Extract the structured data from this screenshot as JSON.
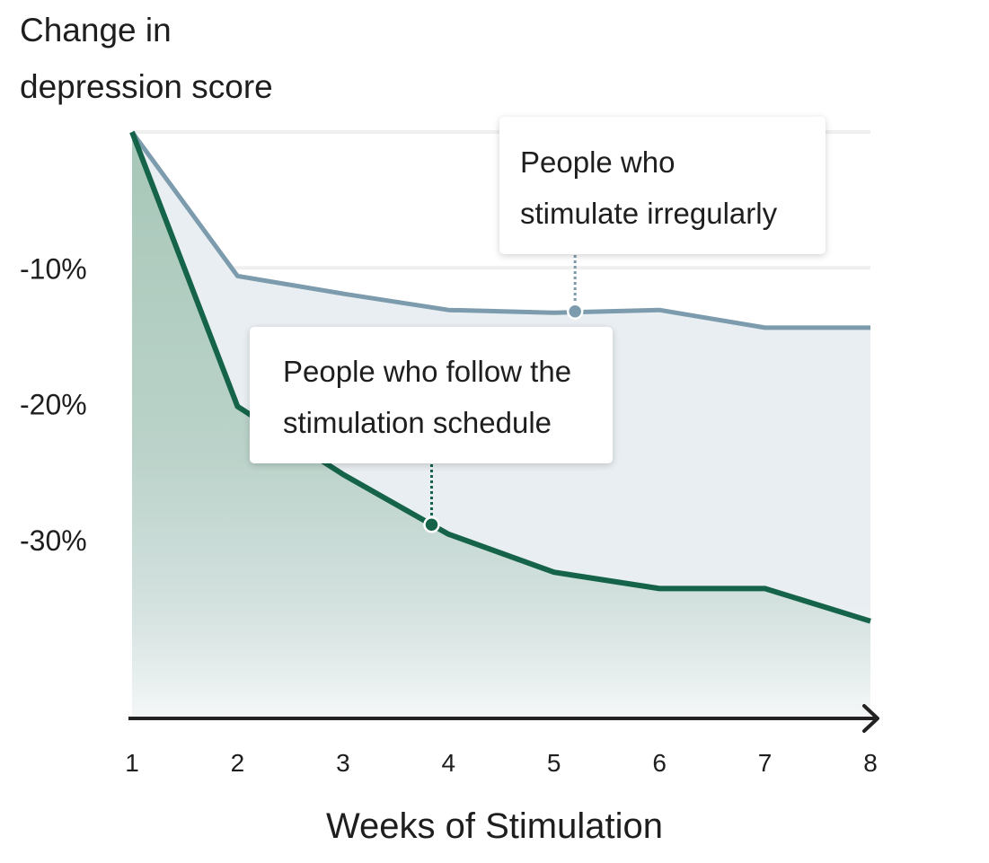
{
  "y_title_lines": [
    "Change in",
    "depression score"
  ],
  "x_title": "Weeks of Stimulation",
  "callouts": {
    "irregular": [
      "People who",
      "stimulate irregularly"
    ],
    "schedule": [
      "People who follow the",
      "stimulation schedule"
    ]
  },
  "colors": {
    "schedule_line": "#156349",
    "irregular_line": "#7c9cae",
    "irregular_fill": "#e9eef2",
    "schedule_fill": "#a7c7b8",
    "grid": "#efefef",
    "axis": "#222222"
  },
  "chart_data": {
    "type": "area",
    "title": "",
    "xlabel": "Weeks of Stimulation",
    "ylabel": "Change in depression score",
    "x": [
      1,
      2,
      3,
      4,
      5,
      6,
      7,
      8
    ],
    "xlim": [
      1,
      8
    ],
    "ylim": [
      -43,
      0
    ],
    "y_ticks": [
      -10,
      -20,
      -30
    ],
    "y_tick_labels": [
      "-10%",
      "-20%",
      "-30%"
    ],
    "grid": true,
    "series": [
      {
        "name": "People who stimulate irregularly",
        "values": [
          0,
          -10.6,
          -11.9,
          -13.1,
          -13.3,
          -13.1,
          -14.4,
          -14.4
        ]
      },
      {
        "name": "People who follow the stimulation schedule",
        "values": [
          0,
          -20.2,
          -25.2,
          -29.6,
          -32.4,
          -33.6,
          -33.6,
          -36.0
        ]
      }
    ],
    "highlight_points": [
      {
        "series": "People who stimulate irregularly",
        "x": 5.2,
        "y": -13.2
      },
      {
        "series": "People who follow the stimulation schedule",
        "x": 3.84,
        "y": -28.9
      }
    ]
  }
}
